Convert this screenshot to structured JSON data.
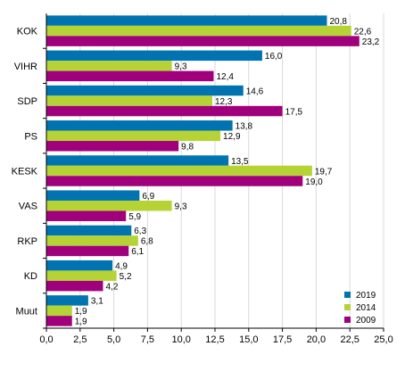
{
  "chart_data": {
    "type": "bar",
    "orientation": "horizontal",
    "categories": [
      "KOK",
      "VIHR",
      "SDP",
      "PS",
      "KESK",
      "VAS",
      "RKP",
      "KD",
      "Muut"
    ],
    "series": [
      {
        "name": "2019",
        "color": "#0073b0",
        "values": [
          20.8,
          16.0,
          14.6,
          13.8,
          13.5,
          6.9,
          6.3,
          4.9,
          3.1
        ],
        "labels": [
          "20,8",
          "16,0",
          "14,6",
          "13,8",
          "13,5",
          "6,9",
          "6,3",
          "4,9",
          "3,1"
        ]
      },
      {
        "name": "2014",
        "color": "#b5d334",
        "values": [
          22.6,
          9.3,
          12.3,
          12.9,
          19.7,
          9.3,
          6.8,
          5.2,
          1.9
        ],
        "labels": [
          "22,6",
          "9,3",
          "12,3",
          "12,9",
          "19,7",
          "9,3",
          "6,8",
          "5,2",
          "1,9"
        ]
      },
      {
        "name": "2009",
        "color": "#a0007c",
        "values": [
          23.2,
          12.4,
          17.5,
          9.8,
          19.0,
          5.9,
          6.1,
          4.2,
          1.9
        ],
        "labels": [
          "23,2",
          "12,4",
          "17,5",
          "9,8",
          "19,0",
          "5,9",
          "6,1",
          "4,2",
          "1,9"
        ]
      }
    ],
    "xlim": [
      0,
      25
    ],
    "x_ticks": [
      "0,0",
      "2,5",
      "5,0",
      "7,5",
      "10,0",
      "12,5",
      "15,0",
      "17,5",
      "20,0",
      "22,5",
      "25,0"
    ],
    "grid": true,
    "legend_position": "bottom-right"
  }
}
